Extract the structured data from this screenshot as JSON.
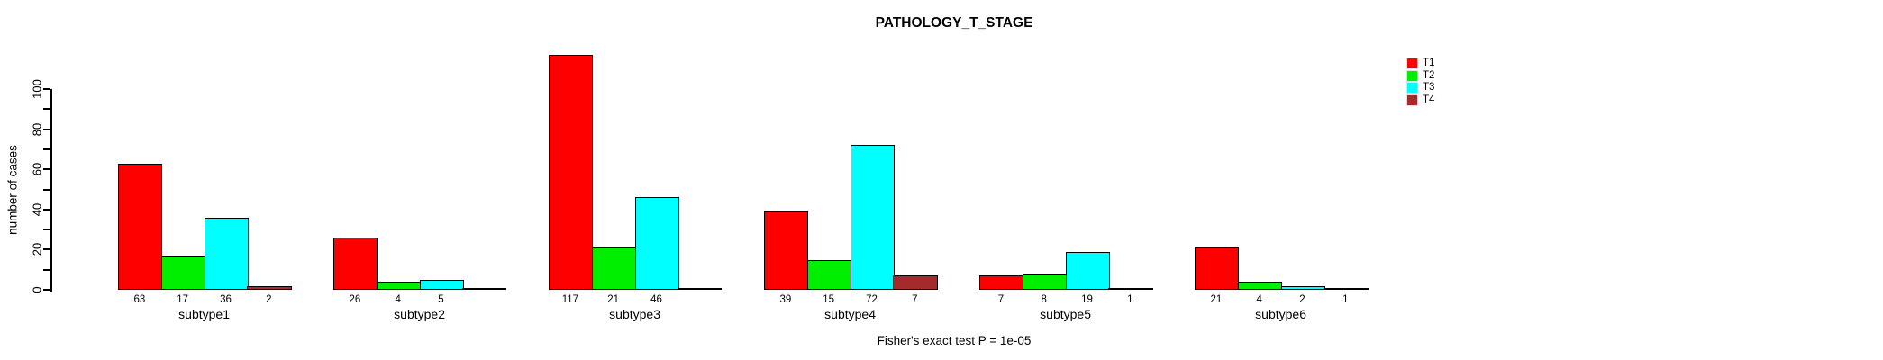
{
  "chart_data": {
    "type": "bar",
    "title": "PATHOLOGY_T_STAGE",
    "xlabel": "",
    "ylabel": "number of cases",
    "categories": [
      "subtype1",
      "subtype2",
      "subtype3",
      "subtype4",
      "subtype5",
      "subtype6"
    ],
    "series": [
      {
        "name": "T1",
        "color": "#FF0000",
        "values": [
          63,
          26,
          117,
          39,
          7,
          21
        ]
      },
      {
        "name": "T2",
        "color": "#00EE00",
        "values": [
          17,
          4,
          21,
          15,
          8,
          4
        ]
      },
      {
        "name": "T3",
        "color": "#00FFFF",
        "values": [
          36,
          5,
          46,
          72,
          19,
          2
        ]
      },
      {
        "name": "T4",
        "color": "#A52A2A",
        "values": [
          2,
          0,
          0,
          7,
          1,
          1
        ]
      }
    ],
    "ylim": [
      0,
      100
    ],
    "ytick_labels": [
      "0",
      "20",
      "40",
      "60",
      "80",
      "100"
    ],
    "ytick_major_step": 20,
    "ytick_minor_step": 10,
    "bar_value_labels_shown": true,
    "grid": false,
    "legend_position": "top-right",
    "annotation": "Fisher's exact test P = 1e-05"
  }
}
